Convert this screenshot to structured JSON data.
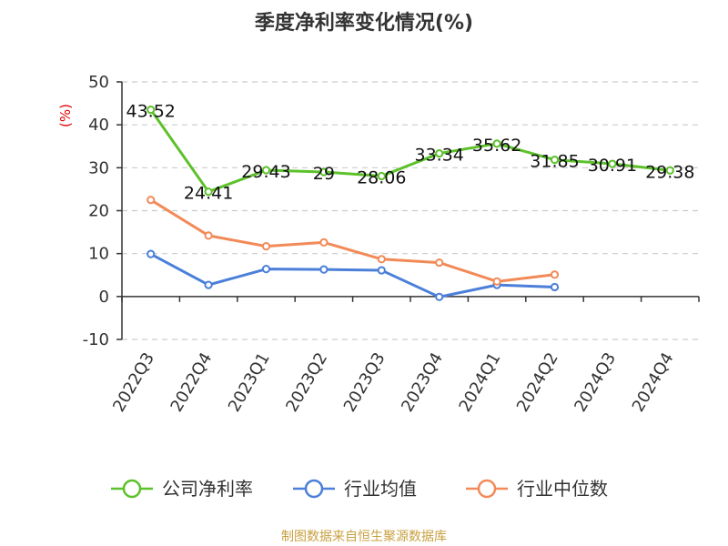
{
  "chart_data": {
    "type": "line",
    "title": "季度净利率变化情况(%)",
    "ylabel": "(%)",
    "xlabel": "",
    "categories": [
      "2022Q3",
      "2022Q4",
      "2023Q1",
      "2023Q2",
      "2023Q3",
      "2023Q4",
      "2024Q1",
      "2024Q2",
      "2024Q3",
      "2024Q4"
    ],
    "ylim": [
      -10,
      50
    ],
    "yticks": [
      -10,
      0,
      10,
      20,
      30,
      40,
      50
    ],
    "grid": true,
    "legend_position": "bottom",
    "series": [
      {
        "name": "公司净利率",
        "color": "#5cc12a",
        "values": [
          43.52,
          24.41,
          29.43,
          29,
          28.06,
          33.34,
          35.62,
          31.85,
          30.91,
          29.38
        ],
        "labels": [
          "43.52",
          "24.41",
          "29.43",
          "29",
          "28.06",
          "33.34",
          "35.62",
          "31.85",
          "30.91",
          "29.38"
        ]
      },
      {
        "name": "行业均值",
        "color": "#4b7fd9",
        "values": [
          9.9,
          2.7,
          6.4,
          6.3,
          6.1,
          -0.1,
          2.7,
          2.2,
          null,
          null
        ]
      },
      {
        "name": "行业中位数",
        "color": "#f28a58",
        "values": [
          22.5,
          14.2,
          11.7,
          12.6,
          8.7,
          7.9,
          3.5,
          5.1,
          null,
          null
        ]
      }
    ]
  },
  "footer": {
    "source": "制图数据来自恒生聚源数据库"
  }
}
